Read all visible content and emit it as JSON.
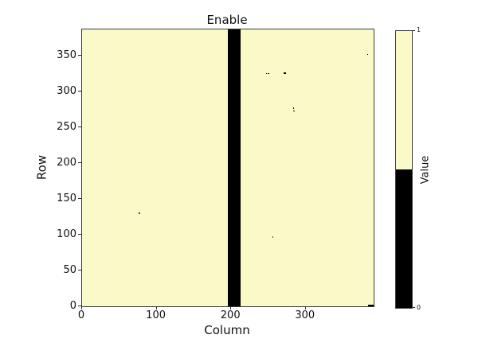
{
  "chart_data": {
    "type": "heatmap",
    "title": "Enable",
    "xlabel": "Column",
    "ylabel": "Row",
    "xlim": [
      0,
      391
    ],
    "ylim": [
      0,
      387
    ],
    "x_ticks": [
      0,
      100,
      200,
      300
    ],
    "y_ticks": [
      0,
      50,
      100,
      150,
      200,
      250,
      300,
      350
    ],
    "grid": false,
    "legend_position": "none",
    "background_value": 1,
    "value_colors": {
      "0": "#000000",
      "1": "#fafac8"
    },
    "faint_cell_color": "#4a4a4a",
    "black_column_band": {
      "value": 0,
      "col_start": 196,
      "col_end": 213
    },
    "zero_cells": [
      {
        "row": 352,
        "col": 383,
        "size": 1.4
      },
      {
        "row": 325,
        "col": 247,
        "size": 1.3
      },
      {
        "row": 325,
        "col": 250,
        "size": 1.3
      },
      {
        "row": 326,
        "col": 272,
        "size": 2.7
      },
      {
        "row": 277,
        "col": 284,
        "size": 1.2
      },
      {
        "row": 273,
        "col": 284,
        "size": 1.5
      },
      {
        "row": 130,
        "col": 77,
        "size": 1.5,
        "faint": true
      },
      {
        "row": 97,
        "col": 256,
        "size": 1.6,
        "faint": true
      }
    ],
    "zero_run_bottom_right": {
      "row": 0,
      "col_start": 383,
      "col_end": 391,
      "thickness_px": 2.5
    },
    "colorbar": {
      "label": "Value",
      "tick_top": "1",
      "tick_bottom": "0",
      "top_color": "#fafac8",
      "bottom_color": "#000000",
      "boundary_fraction": 0.5
    }
  }
}
